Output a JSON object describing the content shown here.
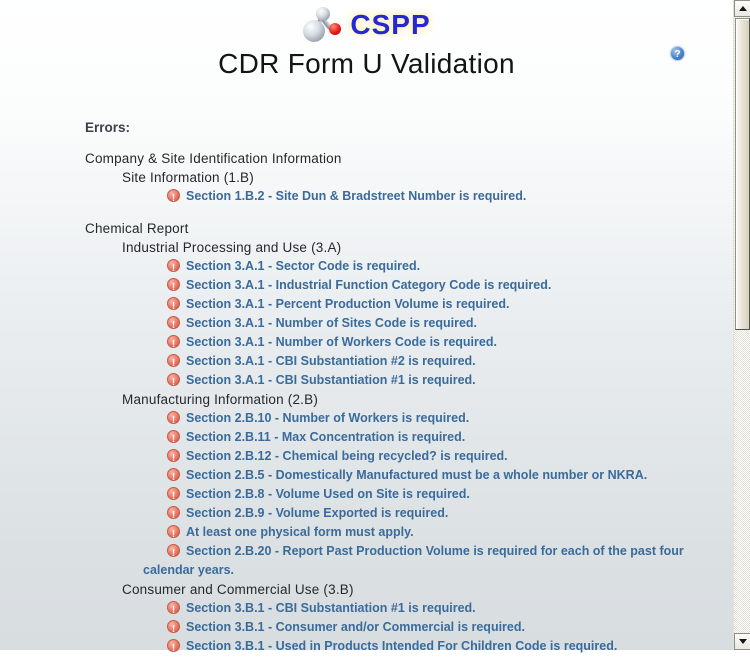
{
  "header": {
    "brand": "CSPP",
    "brand_color": "#2727d2",
    "logo_icon": "molecule-icon",
    "title": "CDR Form U Validation",
    "help_icon": "help-icon",
    "help_glyph": "?"
  },
  "errors_label": "Errors:",
  "colors": {
    "error_text": "#3a6b9b",
    "error_icon": "#eb8372",
    "heading_text": "#26282c",
    "background_bottom": "#d8dde0"
  },
  "icons": {
    "error_marker": "exclamation-circle-icon",
    "scroll_up": "up-arrow-icon",
    "scroll_down": "down-arrow-icon"
  },
  "groups": [
    {
      "label": "Company & Site Identification Information",
      "subsections": [
        {
          "label": "Site Information (1.B)",
          "errors": [
            "Section 1.B.2 - Site Dun & Bradstreet Number is required."
          ]
        }
      ]
    },
    {
      "label": "Chemical Report",
      "subsections": [
        {
          "label": "Industrial Processing and Use (3.A)",
          "errors": [
            "Section 3.A.1 - Sector Code is required.",
            "Section 3.A.1 - Industrial Function Category Code is required.",
            "Section 3.A.1 - Percent Production Volume is required.",
            "Section 3.A.1 - Number of Sites Code is required.",
            "Section 3.A.1 - Number of Workers Code is required.",
            "Section 3.A.1 - CBI Substantiation #2 is required.",
            "Section 3.A.1 - CBI Substantiation #1 is required."
          ]
        },
        {
          "label": "Manufacturing Information (2.B)",
          "errors": [
            "Section 2.B.10 - Number of Workers is required.",
            "Section 2.B.11 - Max Concentration is required.",
            "Section 2.B.12 - Chemical being recycled? is required.",
            "Section 2.B.5 - Domestically Manufactured must be a whole number or NKRA.",
            "Section 2.B.8 - Volume Used on Site is required.",
            "Section 2.B.9 - Volume Exported is required.",
            "At least one physical form must apply.",
            "Section 2.B.20 - Report Past Production Volume is required for each of the past four calendar years."
          ]
        },
        {
          "label": "Consumer and Commercial Use (3.B)",
          "errors": [
            "Section 3.B.1 - CBI Substantiation #1 is required.",
            "Section 3.B.1 - Consumer and/or Commercial is required.",
            "Section 3.B.1 - Used in Products Intended For Children Code is required."
          ]
        }
      ]
    }
  ]
}
